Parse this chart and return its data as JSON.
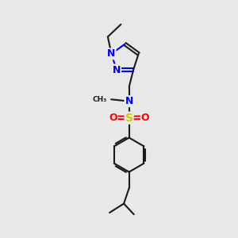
{
  "background_color": "#e8e8e8",
  "bond_color": "#1a1a1a",
  "N_color": "#0000ee",
  "O_color": "#ff0000",
  "S_color": "#cccc00",
  "bond_width": 1.5,
  "fig_width": 3.0,
  "fig_height": 3.0,
  "dpi": 100,
  "xlim": [
    0,
    10
  ],
  "ylim": [
    0,
    10
  ]
}
